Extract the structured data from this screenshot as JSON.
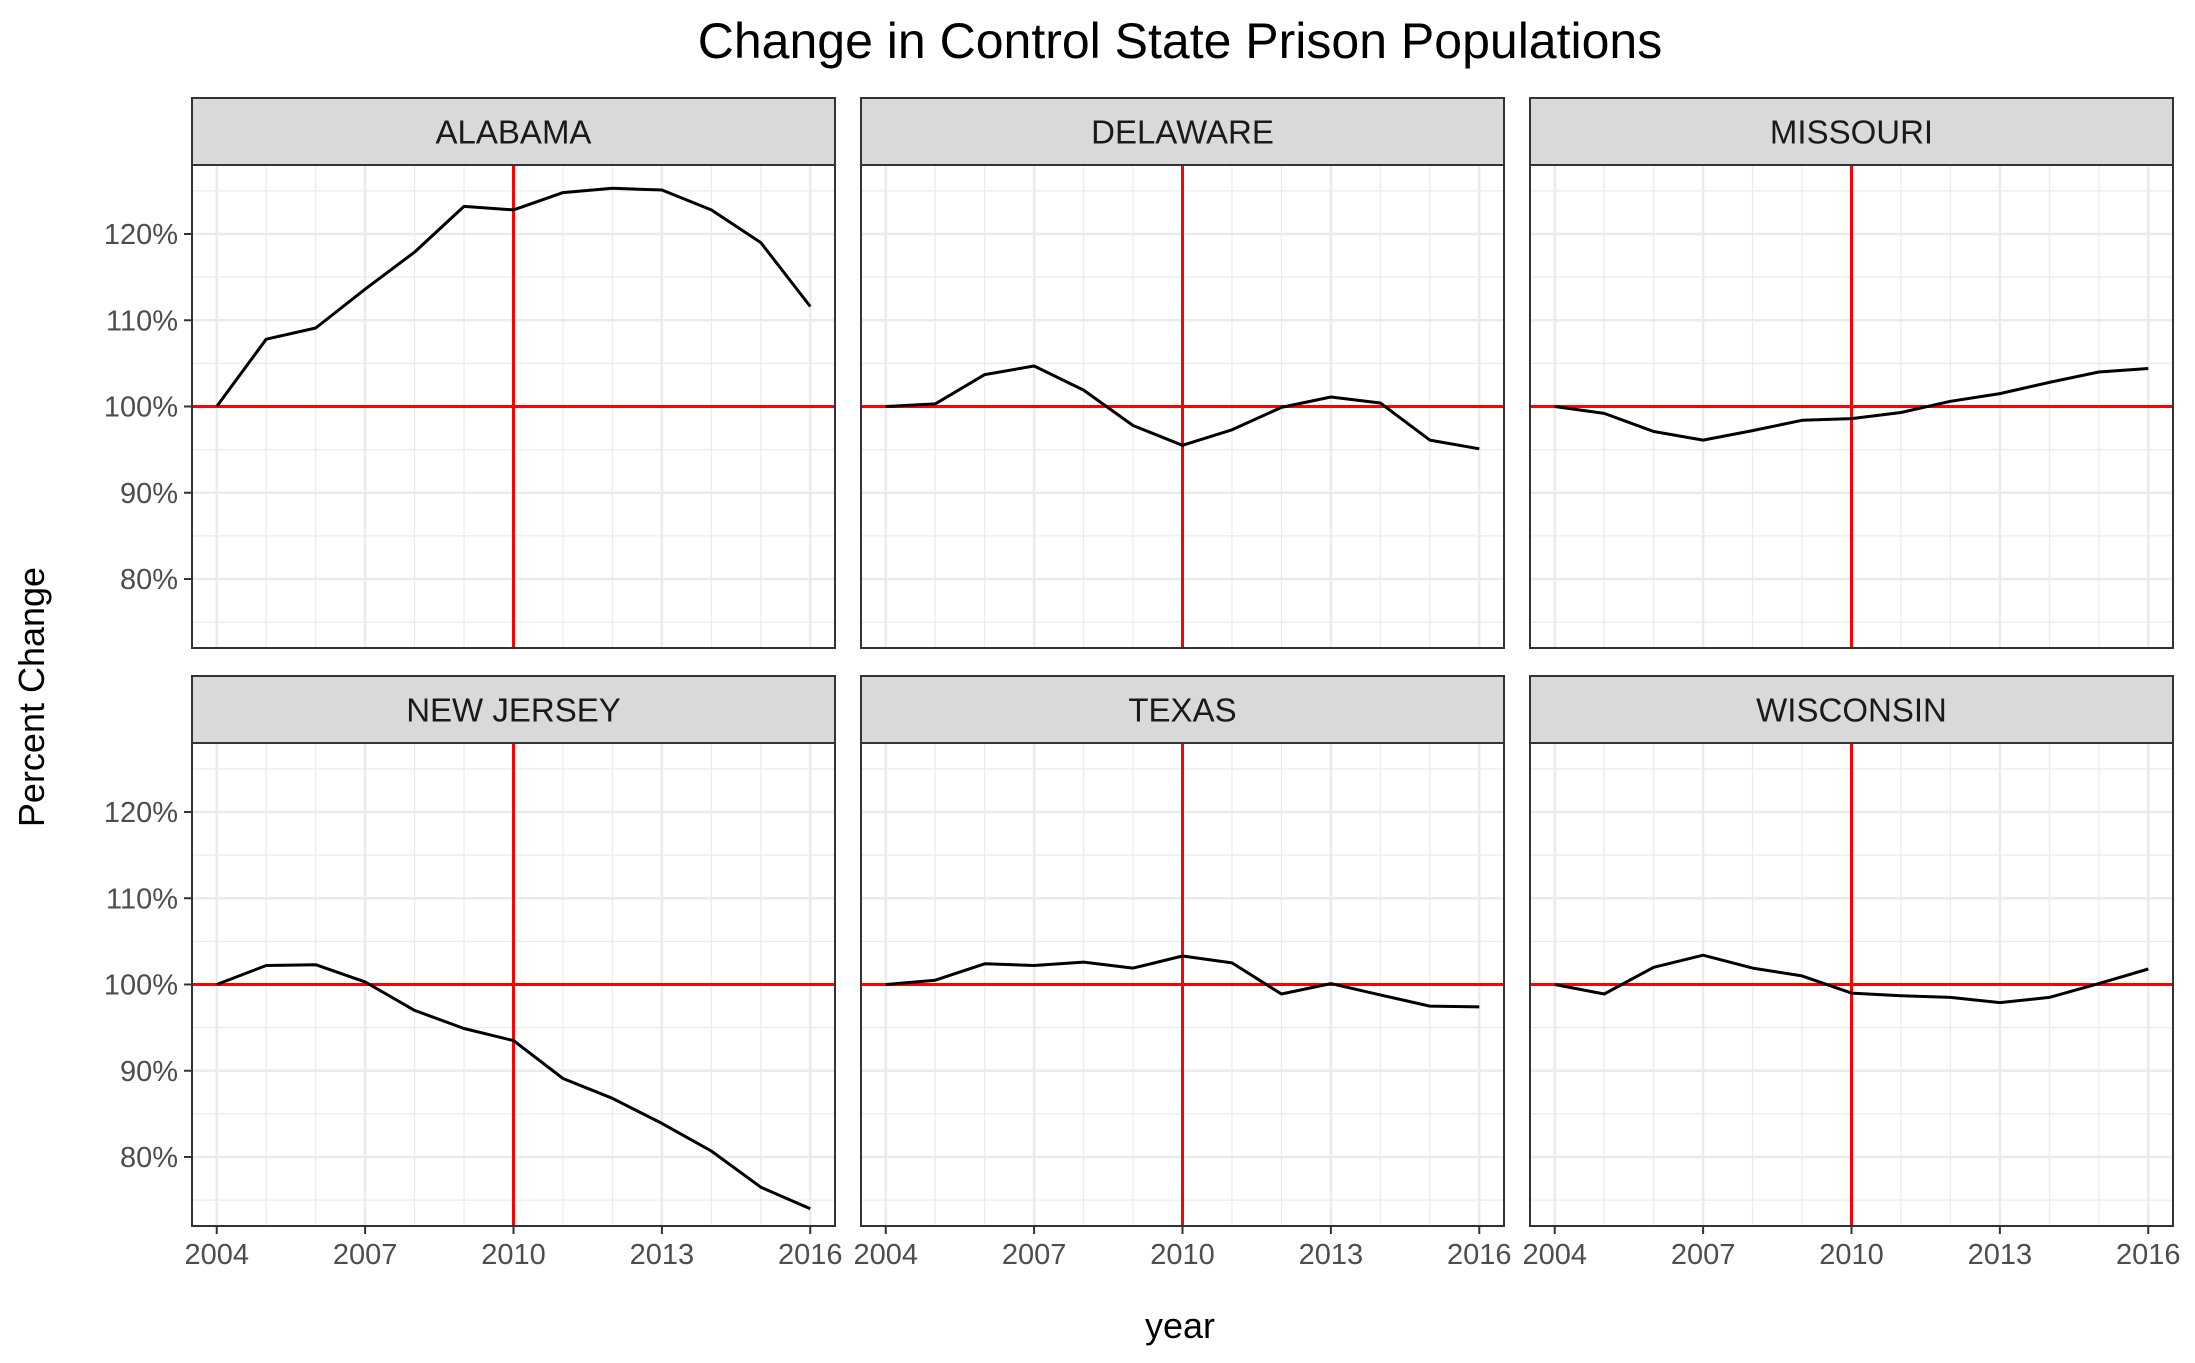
{
  "chart_data": {
    "type": "line",
    "title": "Change in Control State Prison Populations",
    "xlabel": "year",
    "ylabel": "Percent Change",
    "xlim": [
      2003.5,
      2016.5
    ],
    "ylim": [
      72,
      128
    ],
    "x_ticks": [
      2004,
      2007,
      2010,
      2013,
      2016
    ],
    "y_ticks": [
      80,
      90,
      100,
      110,
      120
    ],
    "y_tick_labels": [
      "80%",
      "90%",
      "100%",
      "110%",
      "120%"
    ],
    "grid": true,
    "reference_lines": {
      "vertical_x": 2010,
      "horizontal_y": 100,
      "color": "#ff0000"
    },
    "colors": {
      "series": "#000000",
      "reference": "#ff0000",
      "strip": "#d9d9d9",
      "grid": "#ebebeb"
    },
    "x": [
      2004,
      2005,
      2006,
      2007,
      2008,
      2009,
      2010,
      2011,
      2012,
      2013,
      2014,
      2015,
      2016
    ],
    "panels": [
      {
        "name": "ALABAMA",
        "values": [
          100,
          107.8,
          109.1,
          113.6,
          117.9,
          123.2,
          122.8,
          124.8,
          125.3,
          125.1,
          122.8,
          119.0,
          111.6
        ]
      },
      {
        "name": "DELAWARE",
        "values": [
          100,
          100.3,
          103.7,
          104.7,
          101.9,
          97.8,
          95.5,
          97.3,
          99.9,
          101.1,
          100.4,
          96.1,
          95.1
        ]
      },
      {
        "name": "MISSOURI",
        "values": [
          100,
          99.2,
          97.1,
          96.1,
          97.2,
          98.4,
          98.6,
          99.3,
          100.6,
          101.5,
          102.8,
          104.0,
          104.4
        ]
      },
      {
        "name": "NEW JERSEY",
        "values": [
          100,
          102.2,
          102.3,
          100.3,
          97.0,
          94.9,
          93.5,
          89.1,
          86.8,
          83.9,
          80.7,
          76.5,
          74.0
        ]
      },
      {
        "name": "TEXAS",
        "values": [
          100,
          100.5,
          102.4,
          102.2,
          102.6,
          101.9,
          103.3,
          102.5,
          98.9,
          100.1,
          98.8,
          97.5,
          97.4
        ]
      },
      {
        "name": "WISCONSIN",
        "values": [
          100,
          98.9,
          102.0,
          103.4,
          101.9,
          101.0,
          99.0,
          98.7,
          98.5,
          97.9,
          98.5,
          100.1,
          101.8
        ]
      }
    ]
  }
}
